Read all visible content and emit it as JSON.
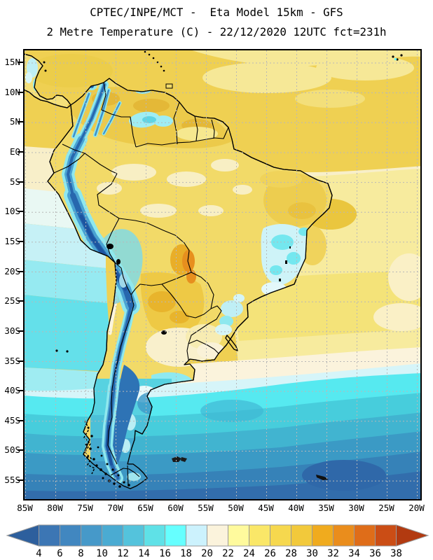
{
  "header": {
    "line1": "CPTEC/INPE/MCT -  Eta Model 15km - GFS",
    "line2": "2 Metre Temperature (C) - 22/12/2020 12UTC fct=231h"
  },
  "axes": {
    "lat_labels": [
      "15N",
      "10N",
      "5N",
      "EQ",
      "5S",
      "10S",
      "15S",
      "20S",
      "25S",
      "30S",
      "35S",
      "40S",
      "45S",
      "50S",
      "55S"
    ],
    "lon_labels": [
      "85W",
      "80W",
      "75W",
      "70W",
      "65W",
      "60W",
      "55W",
      "50W",
      "45W",
      "40W",
      "35W",
      "30W",
      "25W",
      "20W"
    ]
  },
  "colorbar": {
    "tick_labels": [
      "4",
      "6",
      "8",
      "10",
      "12",
      "14",
      "16",
      "18",
      "20",
      "22",
      "24",
      "26",
      "28",
      "30",
      "32",
      "34",
      "36",
      "38"
    ],
    "cell_colors": [
      "#3c76b4",
      "#4187c0",
      "#4699c9",
      "#4aabd2",
      "#54c3dc",
      "#5fe1e7",
      "#66ffff",
      "#ccf2fd",
      "#fbf3dc",
      "#fffa9d",
      "#fae768",
      "#f6d84e",
      "#f2c93b",
      "#f0ab1e",
      "#ea8d1c",
      "#df6d19",
      "#cb4d15"
    ],
    "left_arrow_color": "#2d5f9d",
    "right_arrow_color": "#b23a10",
    "cell_border_color": "#999999"
  },
  "palette": {
    "ocean_tropical_warm": "#efd052",
    "ocean_equatorial_cream": "#f8efc9",
    "ocean_south_atlantic_yellow": "#f7eb9e",
    "ocean_cool_cyan_band": "#56e9f0",
    "ocean_cold_south": "#326dac",
    "land_warm_yellow": "#f2da68",
    "land_hot_orange": "#e78f1e",
    "andes_cold_blue": "#2767ae",
    "andes_cyan_fringe": "#8fe8ee",
    "grid_line": "#b8b8b8",
    "coast_border": "#000000"
  }
}
